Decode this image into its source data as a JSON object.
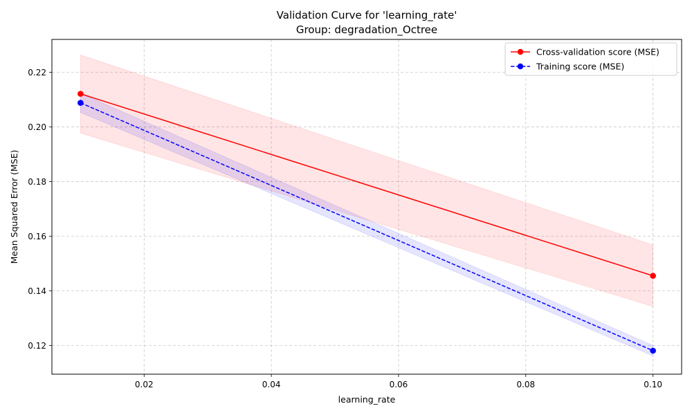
{
  "chart_data": {
    "type": "line",
    "title": "Validation Curve for 'learning_rate'",
    "subtitle": "Group: degradation_Octree",
    "xlabel": "learning_rate",
    "ylabel": "Mean Squared Error (MSE)",
    "xlim": [
      0.0055,
      0.1045
    ],
    "ylim": [
      0.1095,
      0.232
    ],
    "x_ticks": [
      0.02,
      0.04,
      0.06,
      0.08,
      0.1
    ],
    "x_tick_labels": [
      "0.02",
      "0.04",
      "0.06",
      "0.08",
      "0.10"
    ],
    "y_ticks": [
      0.12,
      0.14,
      0.16,
      0.18,
      0.2,
      0.22
    ],
    "y_tick_labels": [
      "0.12",
      "0.14",
      "0.16",
      "0.18",
      "0.20",
      "0.22"
    ],
    "grid": true,
    "legend_position": "top-right",
    "x": [
      0.01,
      0.1
    ],
    "series": [
      {
        "name": "Cross-validation score (MSE)",
        "values": [
          0.2121,
          0.1455
        ],
        "band_lower": [
          0.1977,
          0.1343
        ],
        "band_upper": [
          0.2263,
          0.1568
        ],
        "color": "#ff0000",
        "band_color": "#ff0000",
        "line_style": "solid"
      },
      {
        "name": "Training score (MSE)",
        "values": [
          0.2088,
          0.1181
        ],
        "band_lower": [
          0.2053,
          0.1162
        ],
        "band_upper": [
          0.2123,
          0.12
        ],
        "color": "#0000ff",
        "band_color": "#0000ff",
        "line_style": "dashed"
      }
    ]
  }
}
